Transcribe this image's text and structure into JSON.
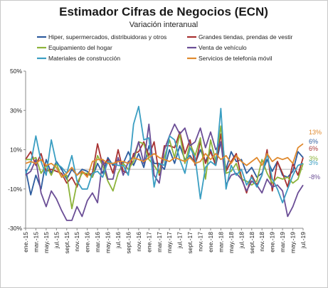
{
  "chart_data": {
    "type": "line",
    "title": "Estimador Cifras de Negocios (ECN)",
    "subtitle": "Variación interanual",
    "y_unit": "%",
    "ylim": [
      -30,
      50
    ],
    "yticks": [
      -30,
      -10,
      10,
      30,
      50
    ],
    "zero_line": true,
    "grid": false,
    "legend_position": "top",
    "x": [
      "ene.-15",
      "feb.-15",
      "mar.-15",
      "abr.-15",
      "may.-15",
      "jun.-15",
      "jul.-15",
      "ago.-15",
      "sept.-15",
      "oct.-15",
      "nov.-15",
      "dic.-15",
      "ene.-16",
      "feb.-16",
      "mar.-16",
      "abr.-16",
      "may.-16",
      "jun.-16",
      "jul.-16",
      "ago.-16",
      "sept.-16",
      "oct.-16",
      "nov.-16",
      "dic.-16",
      "ene.-17",
      "feb.-17",
      "mar.-17",
      "abr.-17",
      "may.-17",
      "jun.-17",
      "jul.-17",
      "ago.-17",
      "sept.-17",
      "oct.-17",
      "nov.-17",
      "dic.-17",
      "ene.-18",
      "feb.-18",
      "mar.-18",
      "abr.-18",
      "may.-18",
      "jun.-18",
      "jul.-18",
      "ago.-18",
      "sept.-18",
      "oct.-18",
      "nov.-18",
      "dic.-18",
      "ene.-19",
      "feb.-19",
      "mar.-19",
      "abr.-19",
      "may.-19",
      "jun.-19",
      "jul.-19"
    ],
    "xtick_labels": [
      "ene.-15",
      "mar.-15",
      "may.-15",
      "jul.-15",
      "sept.-15",
      "nov.-15",
      "ene.-16",
      "mar.-16",
      "may.-16",
      "jul.-16",
      "sept.-16",
      "nov.-16",
      "ene.-17",
      "mar.-17",
      "may.-17",
      "jul.-17",
      "sept.-17",
      "nov.-17",
      "ene.-18",
      "mar.-18",
      "may.-18",
      "jul.-18",
      "sept.-18",
      "nov.-18",
      "ene.-19",
      "mar.-19",
      "may.-19",
      "jul.-19"
    ],
    "series": [
      {
        "name": "Hiper, supermercados, distribuidoras y otros",
        "color": "#2e5c9e",
        "end_label": "6%",
        "values": [
          0,
          -13,
          -3,
          -10,
          5,
          -2,
          4,
          0,
          -5,
          0,
          -3,
          0,
          -1,
          -4,
          3,
          -2,
          6,
          2,
          5,
          3,
          9,
          2,
          8,
          1,
          12,
          3,
          3,
          0,
          10,
          3,
          12,
          5,
          7,
          3,
          10,
          4,
          10,
          2,
          14,
          0,
          9,
          4,
          5,
          -2,
          1,
          -4,
          -2,
          5,
          -1,
          4,
          -3,
          -4,
          -1,
          9,
          6
        ]
      },
      {
        "name": "Grandes tiendas, prendas de vestir",
        "color": "#a83232",
        "end_label": "6%",
        "values": [
          5,
          9,
          2,
          8,
          -1,
          0,
          -1,
          -2,
          -7,
          -4,
          -9,
          -1,
          -3,
          -2,
          13,
          2,
          5,
          -2,
          10,
          -1,
          -2,
          8,
          9,
          14,
          7,
          14,
          -3,
          12,
          12,
          11,
          19,
          8,
          15,
          2,
          14,
          3,
          9,
          2,
          18,
          -1,
          4,
          8,
          -4,
          -12,
          -3,
          -8,
          -3,
          10,
          -11,
          4,
          -2,
          -9,
          3,
          -3,
          6
        ]
      },
      {
        "name": "Equipamiento del hogar",
        "color": "#8db33a",
        "end_label": "3%",
        "values": [
          5,
          5,
          6,
          -2,
          2,
          -3,
          3,
          -4,
          -3,
          -20,
          -7,
          -2,
          -2,
          -4,
          7,
          2,
          -6,
          -11,
          -2,
          3,
          0,
          4,
          14,
          13,
          5,
          2,
          -2,
          6,
          15,
          6,
          18,
          3,
          13,
          7,
          16,
          -5,
          15,
          4,
          22,
          -2,
          -1,
          3,
          -5,
          -6,
          -8,
          -6,
          5,
          -2,
          -7,
          -4,
          -5,
          -4,
          -7,
          -5,
          3
        ]
      },
      {
        "name": "Venta de vehículo",
        "color": "#6b4e96",
        "end_label": "-8%",
        "values": [
          -3,
          -1,
          5,
          -12,
          -19,
          -11,
          -15,
          -21,
          -26,
          -26,
          -19,
          -24,
          -16,
          -12,
          -17,
          5,
          -5,
          -5,
          6,
          -3,
          4,
          6,
          14,
          3,
          23,
          -3,
          -7,
          10,
          17,
          23,
          18,
          21,
          12,
          14,
          21,
          11,
          19,
          10,
          14,
          -8,
          -3,
          -2,
          -5,
          -11,
          -6,
          -8,
          -12,
          -5,
          -9,
          -8,
          -11,
          -24,
          -19,
          -12,
          -8
        ]
      },
      {
        "name": "Materiales de construcción",
        "color": "#3a9ec2",
        "end_label": "3%",
        "values": [
          -2,
          3,
          17,
          4,
          -3,
          15,
          3,
          1,
          -2,
          7,
          -6,
          -10,
          -10,
          -2,
          -1,
          -4,
          4,
          3,
          2,
          2,
          -3,
          23,
          32,
          15,
          16,
          -9,
          3,
          2,
          17,
          15,
          5,
          -2,
          11,
          6,
          -15,
          1,
          4,
          2,
          31,
          -10,
          2,
          -3,
          0,
          -8,
          -4,
          -9,
          -3,
          8,
          -5,
          -10,
          -17,
          -10,
          -3,
          2,
          3
        ]
      },
      {
        "name": "Servicios de telefonía móvil",
        "color": "#e08a2e",
        "end_label": "13%",
        "values": [
          3,
          4,
          3,
          5,
          2,
          3,
          1,
          -4,
          -2,
          1,
          -3,
          -1,
          -4,
          4,
          5,
          5,
          3,
          3,
          4,
          4,
          3,
          6,
          5,
          4,
          6,
          8,
          6,
          5,
          4,
          6,
          5,
          4,
          6,
          3,
          4,
          8,
          5,
          8,
          5,
          7,
          3,
          7,
          4,
          2,
          4,
          6,
          2,
          8,
          4,
          6,
          5,
          6,
          3,
          11,
          13
        ]
      }
    ]
  }
}
